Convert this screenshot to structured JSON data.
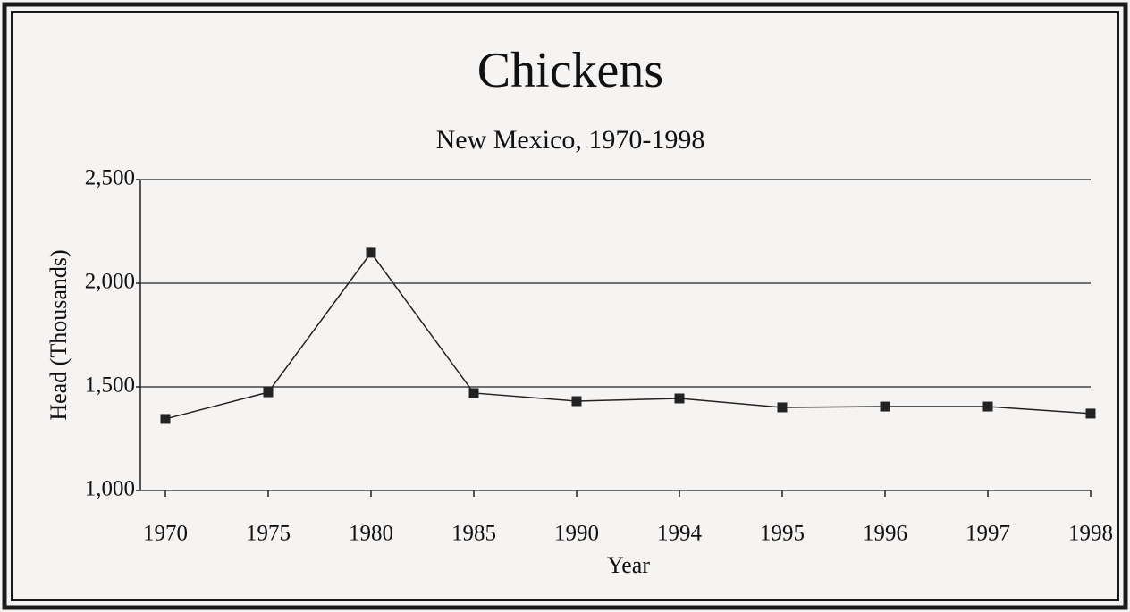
{
  "chart_data": {
    "type": "line",
    "title": "Chickens",
    "subtitle": "New Mexico, 1970-1998",
    "x_label": "Year",
    "y_label": "Head (Thousands)",
    "categories": [
      "1970",
      "1975",
      "1980",
      "1985",
      "1990",
      "1994",
      "1995",
      "1996",
      "1997",
      "1998"
    ],
    "series": [
      {
        "name": "Chickens",
        "color": "#222222",
        "values": [
          1345,
          1474,
          2147,
          1470,
          1431,
          1444,
          1401,
          1405,
          1405,
          1371
        ]
      }
    ],
    "ylim": [
      1000,
      2500
    ],
    "yticks": [
      {
        "value": 1000,
        "label": "1,000"
      },
      {
        "value": 1500,
        "label": "1,500"
      },
      {
        "value": 2000,
        "label": "2,000"
      },
      {
        "value": 2500,
        "label": "2,500"
      }
    ],
    "grid": true
  }
}
